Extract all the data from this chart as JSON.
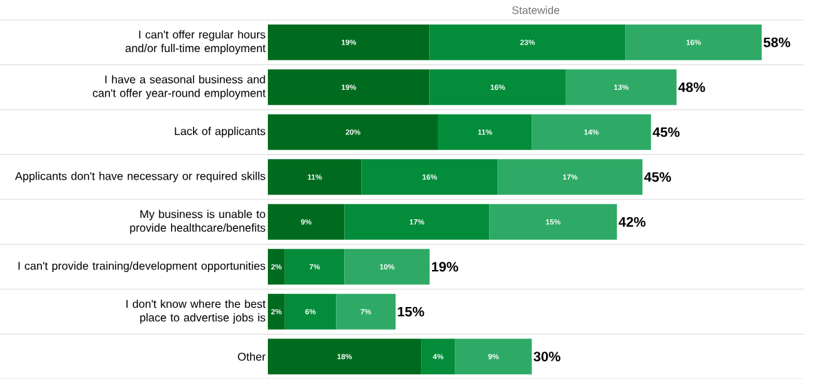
{
  "chart_data": {
    "type": "bar",
    "orientation": "horizontal",
    "stacked": true,
    "title": "Statewide",
    "grid": "y",
    "tick_labels": "y",
    "categories": [
      "I can't offer regular hours and/or full-time employment",
      "I have a seasonal business and can't offer year-round employment",
      "Lack of applicants",
      "Applicants don't have necessary or required skills",
      "My business is unable to provide healthcare/benefits",
      "I can't provide training/development opportunities",
      "I don't know where the best place to advertise jobs is",
      "Other"
    ],
    "series": [
      {
        "color": "#006b1f",
        "values": [
          19,
          19,
          20,
          11,
          9,
          2,
          2,
          18
        ],
        "value_labels": [
          "19%",
          "19%",
          "20%",
          "11%",
          "9%",
          "2%",
          "2%",
          "18%"
        ]
      },
      {
        "color": "#038c3a",
        "values": [
          23,
          16,
          11,
          16,
          17,
          7,
          6,
          4
        ],
        "value_labels": [
          "23%",
          "16%",
          "11%",
          "16%",
          "17%",
          "7%",
          "6%",
          "4%"
        ]
      },
      {
        "color": "#2eaa66",
        "values": [
          16,
          13,
          14,
          17,
          15,
          10,
          7,
          9
        ],
        "value_labels": [
          "16%",
          "13%",
          "14%",
          "17%",
          "15%",
          "10%",
          "7%",
          "9%"
        ]
      }
    ],
    "totals": [
      "58%",
      "48%",
      "45%",
      "45%",
      "42%",
      "19%",
      "15%",
      "30%"
    ]
  }
}
